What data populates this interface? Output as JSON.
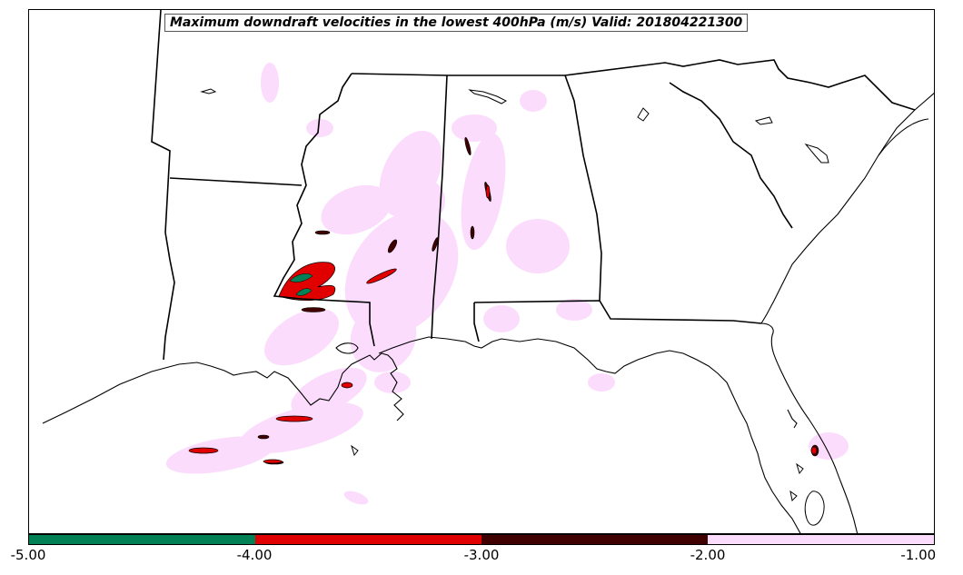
{
  "title": "Maximum downdraft velocities in the lowest 400hPa (m/s) Valid: 201804221300",
  "colorbar": {
    "segments": [
      {
        "from": -5.0,
        "to": -4.0,
        "color": "#008055"
      },
      {
        "from": -4.0,
        "to": -3.0,
        "color": "#e00000"
      },
      {
        "from": -3.0,
        "to": -2.0,
        "color": "#400000"
      },
      {
        "from": -2.0,
        "to": -1.0,
        "color": "#fcdcfc"
      }
    ],
    "tick_labels": [
      "-5.00",
      "-4.00",
      "-3.00",
      "-2.00",
      "-1.00"
    ]
  },
  "colors": {
    "weak": "#fcdcfc",
    "moderate": "#400000",
    "strong": "#e00000",
    "extreme": "#008055",
    "boundary": "#000000"
  }
}
